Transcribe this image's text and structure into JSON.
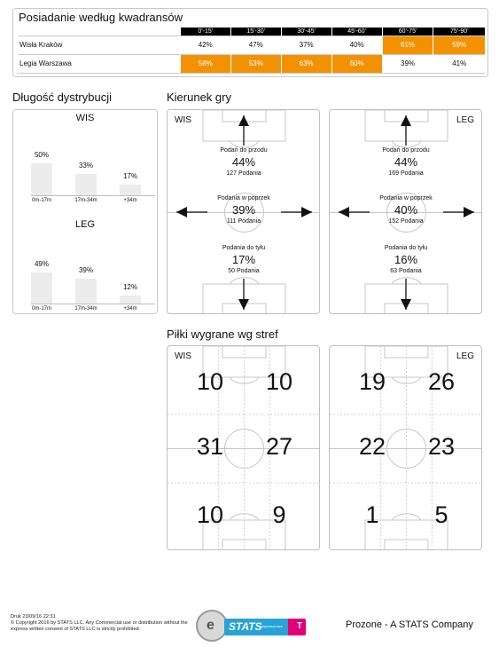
{
  "possession": {
    "title": "Posiadanie według kwadransów",
    "periods": [
      "0'-15'",
      "15'-30'",
      "30'-45'",
      "45'-60'",
      "60'-75'",
      "75'-90'"
    ],
    "rows": [
      {
        "team": "Wisła Kraków",
        "values": [
          "42%",
          "47%",
          "37%",
          "40%",
          "61%",
          "59%"
        ],
        "highlight": [
          false,
          false,
          false,
          false,
          true,
          true
        ]
      },
      {
        "team": "Legia Warszawa",
        "values": [
          "58%",
          "53%",
          "63%",
          "60%",
          "39%",
          "41%"
        ],
        "highlight": [
          true,
          true,
          true,
          true,
          false,
          false
        ]
      }
    ],
    "highlight_color": "#f39200"
  },
  "distribution": {
    "title": "Długość dystrybucji",
    "teams": [
      {
        "name": "WIS",
        "values": [
          50,
          33,
          17
        ],
        "labels": [
          "50%",
          "33%",
          "17%"
        ]
      },
      {
        "name": "LEG",
        "values": [
          49,
          39,
          12
        ],
        "labels": [
          "49%",
          "39%",
          "12%"
        ]
      }
    ],
    "categories": [
      "0m-17m",
      "17m-34m",
      "+34m"
    ]
  },
  "direction": {
    "title": "Kierunek gry",
    "teams": [
      {
        "name": "WIS",
        "forward": {
          "label": "Podań do przodu",
          "pct": "44%",
          "count": "127 Podania"
        },
        "across": {
          "label": "Podania w poprzek",
          "pct": "39%",
          "count": "111 Podania"
        },
        "back": {
          "label": "Podania do tyłu",
          "pct": "17%",
          "count": "50 Podania"
        }
      },
      {
        "name": "LEG",
        "forward": {
          "label": "Podań do przodu",
          "pct": "44%",
          "count": "169 Podania"
        },
        "across": {
          "label": "Podania w poprzek",
          "pct": "40%",
          "count": "152 Podania"
        },
        "back": {
          "label": "Podania do tyłu",
          "pct": "16%",
          "count": "63 Podania"
        }
      }
    ]
  },
  "zones": {
    "title": "Piłki wygrane wg stref",
    "teams": [
      {
        "name": "WIS",
        "values": [
          "10",
          "10",
          "31",
          "27",
          "10",
          "9"
        ]
      },
      {
        "name": "LEG",
        "values": [
          "19",
          "26",
          "22",
          "23",
          "1",
          "5"
        ]
      }
    ]
  },
  "footer": {
    "print_line": "Druk 23/09/16 22:31",
    "copyright": "© Copyright 2016 by STATS LLC. Any Commercial use or distribution without the express written consent of STATS LLC is strictly prohibited.",
    "logo_brand": "STATS",
    "logo_sub": "zasponsorowe",
    "logo_mark": "T",
    "company": "Prozone - A STATS Company"
  },
  "colors": {
    "accent": "#f39200",
    "bar": "#ececec",
    "border": "#c9c9c9"
  }
}
